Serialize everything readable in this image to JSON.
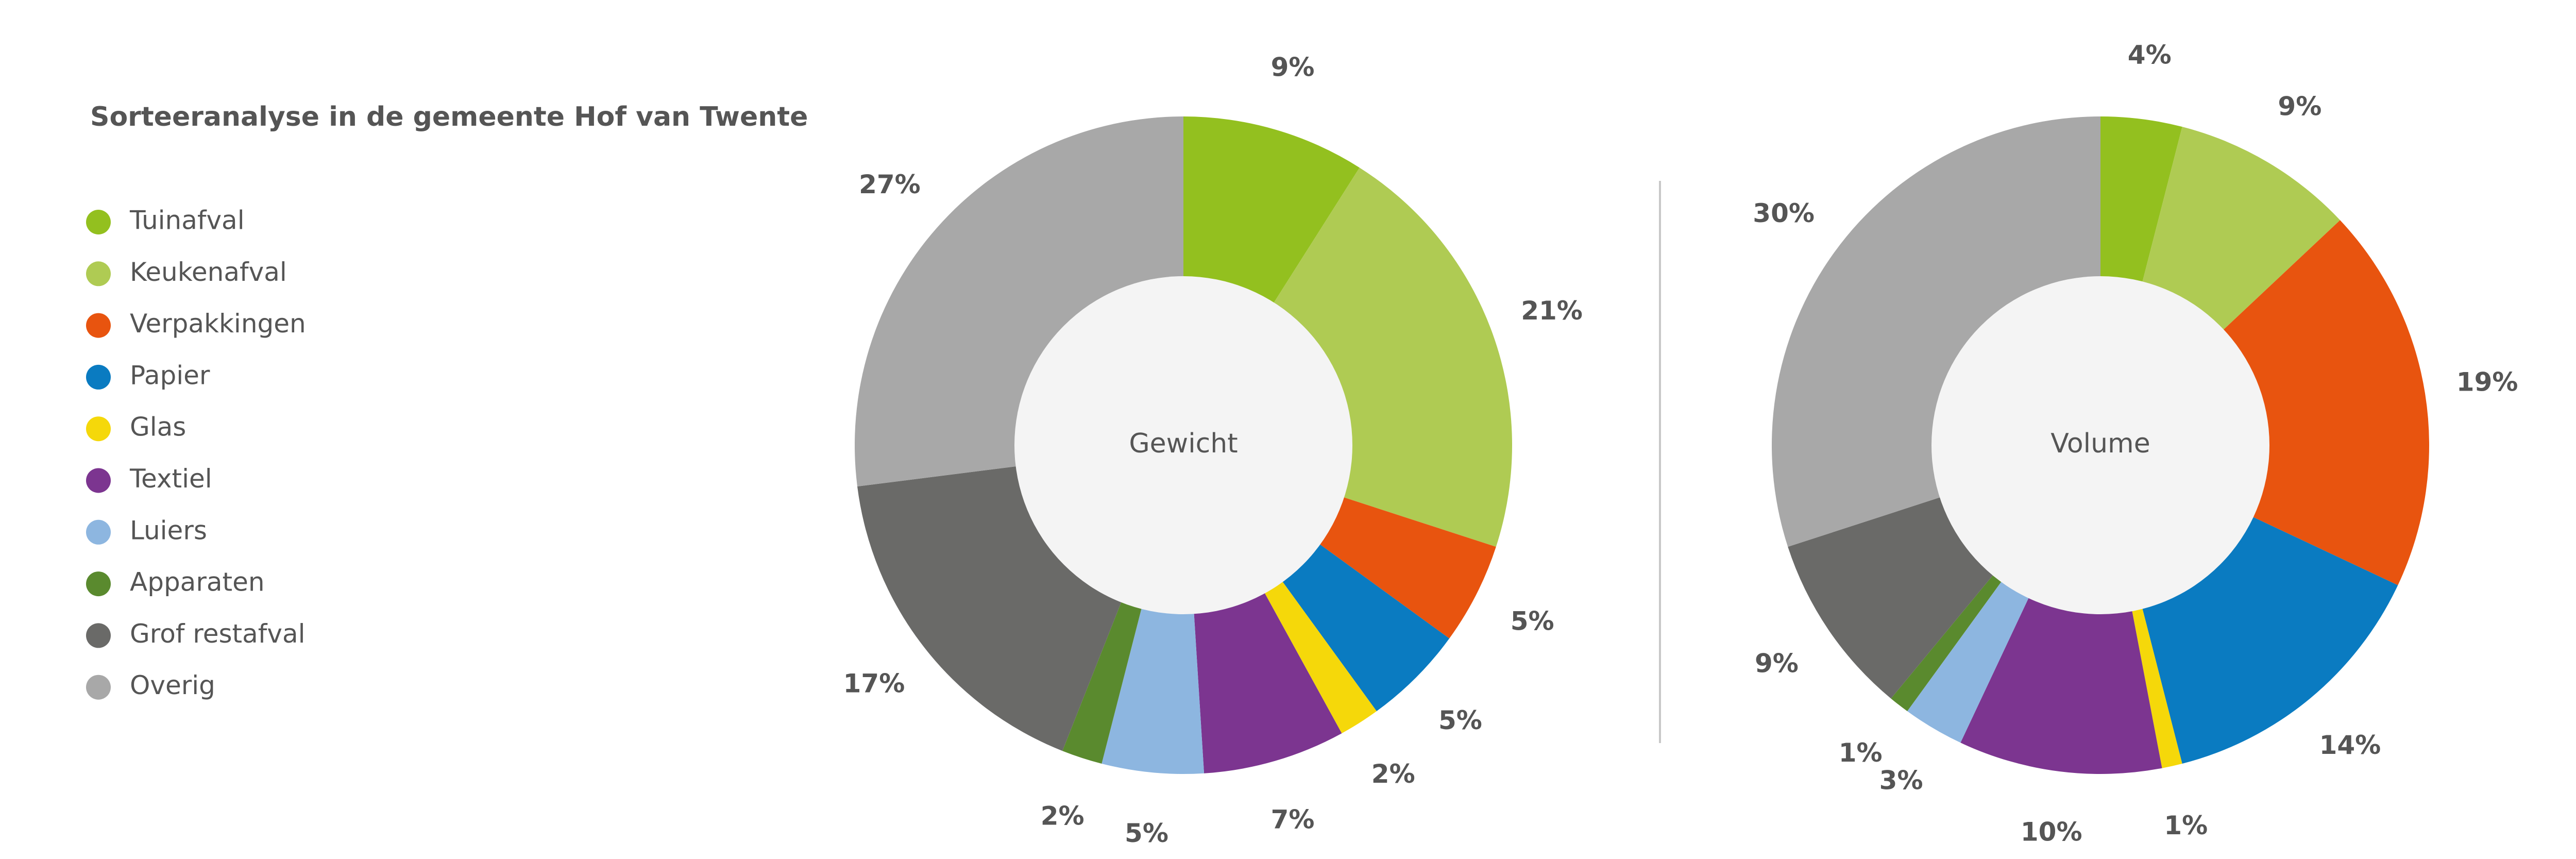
{
  "title": "Sorteeranalyse in de gemeente Hof van Twente",
  "chart_data": [
    {
      "type": "pie",
      "center_label": "Gewicht",
      "categories": [
        "Tuinafval",
        "Keukenafval",
        "Verpakkingen",
        "Papier",
        "Glas",
        "Textiel",
        "Luiers",
        "Apparaten",
        "Grof restafval",
        "Overig"
      ],
      "values": [
        9,
        21,
        5,
        5,
        2,
        7,
        5,
        2,
        17,
        27
      ],
      "value_labels": [
        "9%",
        "21%",
        "5%",
        "5%",
        "2%",
        "7%",
        "5%",
        "2%",
        "17%",
        "27%"
      ],
      "colors": [
        "#93c01f",
        "#afcb53",
        "#e8540f",
        "#0a7bc1",
        "#f5d80a",
        "#7c3590",
        "#8db6e0",
        "#5a8a2e",
        "#6a6a68",
        "#a8a8a8"
      ]
    },
    {
      "type": "pie",
      "center_label": "Volume",
      "categories": [
        "Tuinafval",
        "Keukenafval",
        "Verpakkingen",
        "Papier",
        "Glas",
        "Textiel",
        "Luiers",
        "Apparaten",
        "Grof restafval",
        "Overig"
      ],
      "values": [
        4,
        9,
        19,
        14,
        1,
        10,
        3,
        1,
        9,
        30
      ],
      "value_labels": [
        "4%",
        "9%",
        "19%",
        "14%",
        "1%",
        "10%",
        "3%",
        "1%",
        "9%",
        "30%"
      ],
      "colors": [
        "#93c01f",
        "#afcb53",
        "#e8540f",
        "#0a7bc1",
        "#f5d80a",
        "#7c3590",
        "#8db6e0",
        "#5a8a2e",
        "#6a6a68",
        "#a8a8a8"
      ]
    }
  ]
}
